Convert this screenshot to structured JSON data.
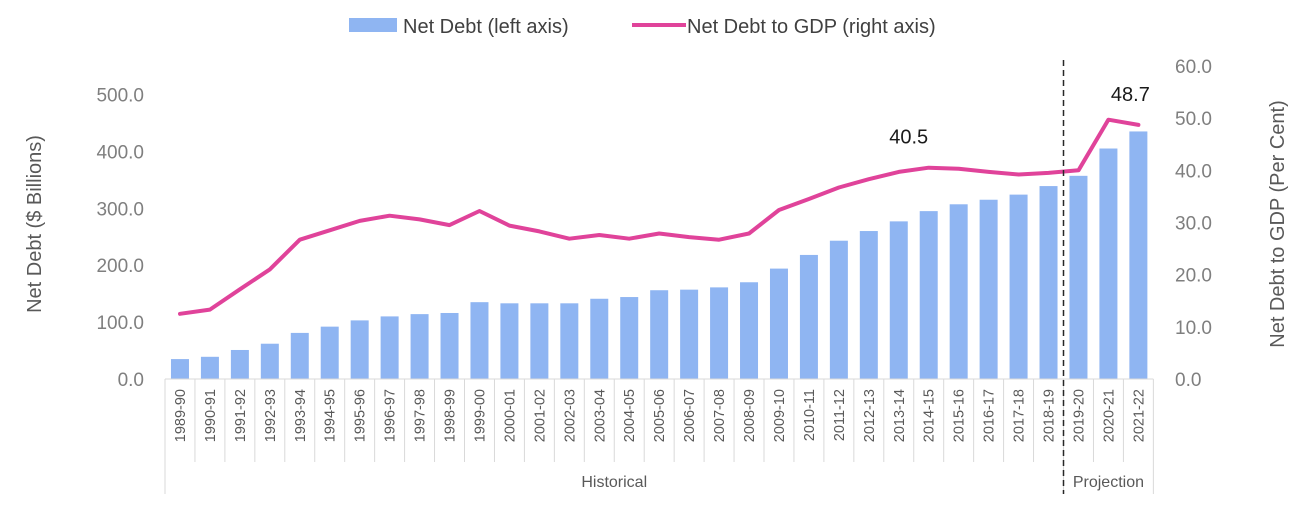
{
  "chart_data": {
    "type": "bar+line",
    "categories": [
      "1989-90",
      "1990-91",
      "1991-92",
      "1992-93",
      "1993-94",
      "1994-95",
      "1995-96",
      "1996-97",
      "1997-98",
      "1998-99",
      "1999-00",
      "2000-01",
      "2001-02",
      "2002-03",
      "2003-04",
      "2004-05",
      "2005-06",
      "2006-07",
      "2007-08",
      "2008-09",
      "2009-10",
      "2010-11",
      "2011-12",
      "2012-13",
      "2013-14",
      "2014-15",
      "2015-16",
      "2016-17",
      "2017-18",
      "2018-19",
      "2019-20",
      "2020-21",
      "2021-22"
    ],
    "series": [
      {
        "name": "Net Debt (left axis)",
        "type": "bar",
        "axis": "left",
        "color": "#8fb5f2",
        "values": [
          35,
          39,
          51,
          62,
          81,
          92,
          103,
          110,
          114,
          116,
          135,
          133,
          133,
          133,
          141,
          144,
          156,
          157,
          161,
          170,
          194,
          218,
          243,
          260,
          277,
          295,
          307,
          315,
          324,
          339,
          357,
          405,
          435
        ]
      },
      {
        "name": "Net Debt to GDP (right axis)",
        "type": "line",
        "axis": "right",
        "color": "#e0439a",
        "values": [
          12.5,
          13.3,
          17.2,
          21.0,
          26.7,
          28.5,
          30.3,
          31.3,
          30.6,
          29.5,
          32.2,
          29.4,
          28.3,
          26.9,
          27.6,
          26.9,
          27.9,
          27.2,
          26.7,
          27.9,
          32.4,
          34.5,
          36.7,
          38.3,
          39.7,
          40.5,
          40.3,
          39.7,
          39.2,
          39.5,
          40.0,
          49.7,
          48.7
        ]
      }
    ],
    "y_left": {
      "title": "Net Debt ($ Billions)",
      "range": [
        0,
        550
      ],
      "ticks": [
        "0.0",
        "100.0",
        "200.0",
        "300.0",
        "400.0",
        "500.0"
      ]
    },
    "y_right": {
      "title": "Net Debt to GDP (Per Cent)",
      "range": [
        0,
        60
      ],
      "ticks": [
        "0.0",
        "10.0",
        "20.0",
        "30.0",
        "40.0",
        "50.0",
        "60.0"
      ]
    },
    "annotations": [
      {
        "text": "40.5",
        "category": "2014-15",
        "series": "Net Debt to GDP (right axis)"
      },
      {
        "text": "48.7",
        "category": "2021-22",
        "series": "Net Debt to GDP (right axis)"
      }
    ],
    "groups": [
      {
        "label": "Historical",
        "from": "1989-90",
        "to": "2018-19"
      },
      {
        "label": "Projection",
        "from": "2019-20",
        "to": "2021-22"
      }
    ],
    "divider_after": "2018-19",
    "legend_position": "top-center",
    "grid": false
  }
}
